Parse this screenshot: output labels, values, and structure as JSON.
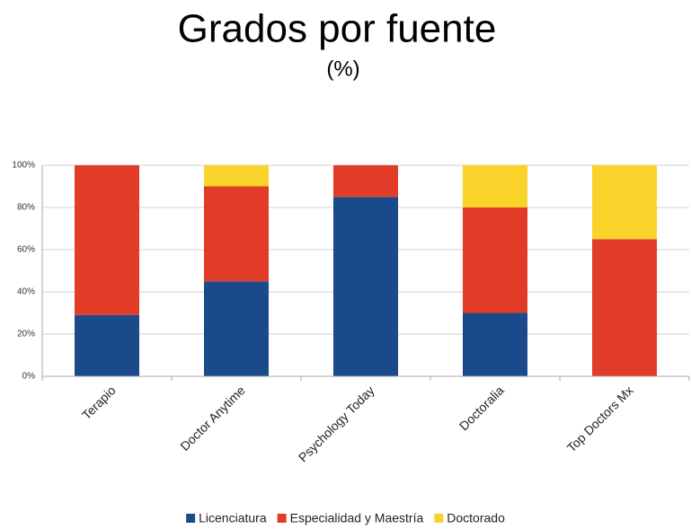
{
  "chart_data": {
    "type": "stacked_bar",
    "title": "Grados por fuente",
    "subtitle": "(%)",
    "categories": [
      "Terapio",
      "Doctor Anytime",
      "Psychology Today",
      "Doctoralia",
      "Top Doctors Mx"
    ],
    "series": [
      {
        "name": "Licenciatura",
        "color": "#1a4a8a",
        "values": [
          29,
          45,
          85,
          30,
          0
        ]
      },
      {
        "name": "Especialidad y Maestría",
        "color": "#e03c28",
        "values": [
          71,
          45,
          15,
          50,
          65
        ]
      },
      {
        "name": "Doctorado",
        "color": "#f9d32a",
        "values": [
          0,
          10,
          0,
          20,
          35
        ]
      }
    ],
    "ylim": [
      0,
      100
    ],
    "yticks": [
      {
        "value": 0,
        "label": "0%"
      },
      {
        "value": 20,
        "label": "20%"
      },
      {
        "value": 40,
        "label": "40%"
      },
      {
        "value": 60,
        "label": "60%"
      },
      {
        "value": 80,
        "label": "80%"
      },
      {
        "value": 100,
        "label": "100%"
      }
    ],
    "grid": true
  }
}
